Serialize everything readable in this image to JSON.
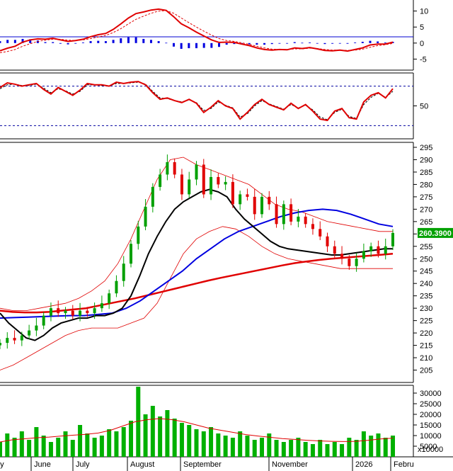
{
  "colors": {
    "up": "#00a000",
    "down": "#e00000",
    "ma_black": "#000000",
    "ma_blue": "#0000e0",
    "ma_red": "#e00000",
    "volume_bar": "#00b000",
    "price_tag_bg": "#00a000",
    "grid": "#000000"
  },
  "chart_data": [
    {
      "panel": "macd",
      "type": "line",
      "ylim": [
        -8,
        13
      ],
      "yticks": [
        "10",
        "5",
        "0",
        "-5"
      ],
      "series": [
        {
          "style": "solid-red",
          "values": [
            -2.4,
            -1.6,
            -1.0,
            0.3,
            1.0,
            1.3,
            1.2,
            1.5,
            1.0,
            0.5,
            0.8,
            1.2,
            2.0,
            2.6,
            3.0,
            4.3,
            6.0,
            7.8,
            9.2,
            9.7,
            10.3,
            10.6,
            10.2,
            8.2,
            6.0,
            4.8,
            3.4,
            2.2,
            1.0,
            0.2,
            0.3,
            0.2,
            -0.3,
            -0.8,
            -1.5,
            -2.0,
            -2.2,
            -2.0,
            -2.1,
            -1.5,
            -1.7,
            -1.4,
            -1.8,
            -2.3,
            -2.4,
            -2.2,
            -2.5,
            -2.0,
            -1.5,
            -0.6,
            -0.3,
            -0.3,
            0.3
          ]
        },
        {
          "style": "dashed-red",
          "values": [
            -3.0,
            -2.6,
            -2.0,
            -1.0,
            -0.2,
            0.5,
            0.9,
            1.2,
            1.2,
            0.9,
            0.8,
            1.0,
            1.4,
            1.9,
            2.4,
            3.3,
            4.5,
            6.0,
            7.4,
            8.4,
            9.3,
            10.0,
            10.1,
            9.3,
            7.8,
            6.4,
            5.0,
            3.7,
            2.5,
            1.4,
            0.8,
            0.5,
            0.1,
            -0.4,
            -1.0,
            -1.5,
            -1.9,
            -2.0,
            -2.0,
            -1.8,
            -1.8,
            -1.6,
            -1.7,
            -2.0,
            -2.2,
            -2.2,
            -2.3,
            -2.2,
            -1.9,
            -1.3,
            -0.8,
            -0.5,
            -0.1
          ]
        },
        {
          "style": "histogram",
          "values": [
            0.6,
            1.0,
            1.0,
            1.3,
            1.2,
            0.8,
            0.3,
            0.3,
            -0.2,
            -0.4,
            0.0,
            0.2,
            0.6,
            0.7,
            0.6,
            1.0,
            1.5,
            1.8,
            1.8,
            1.3,
            1.0,
            0.6,
            0.1,
            -1.1,
            -1.8,
            -1.6,
            -1.6,
            -1.5,
            -1.5,
            -1.2,
            -0.5,
            -0.3,
            -0.4,
            -0.4,
            -0.5,
            -0.5,
            -0.3,
            0.0,
            -0.1,
            0.3,
            0.1,
            0.2,
            -0.1,
            -0.3,
            -0.2,
            0.0,
            -0.2,
            0.2,
            0.4,
            0.7,
            0.5,
            0.2,
            0.4
          ]
        }
      ]
    },
    {
      "panel": "rsi",
      "type": "line",
      "ylim": [
        0,
        100
      ],
      "yticks": [
        "50"
      ],
      "reference_lines": [
        80,
        20
      ],
      "series": [
        {
          "style": "solid-red",
          "values": [
            78,
            85,
            83,
            80,
            82,
            84,
            75,
            68,
            78,
            72,
            66,
            74,
            84,
            82,
            82,
            80,
            86,
            84,
            86,
            87,
            82,
            70,
            60,
            62,
            58,
            55,
            60,
            54,
            40,
            48,
            58,
            50,
            46,
            30,
            40,
            52,
            60,
            52,
            48,
            44,
            54,
            46,
            52,
            42,
            30,
            28,
            42,
            46,
            32,
            30,
            56,
            66,
            70,
            62,
            76
          ]
        },
        {
          "style": "dashed-black",
          "values": [
            76,
            82,
            83,
            81,
            81,
            83,
            77,
            70,
            76,
            73,
            68,
            72,
            82,
            82,
            81,
            80,
            84,
            84,
            85,
            86,
            83,
            72,
            62,
            61,
            58,
            56,
            59,
            55,
            43,
            46,
            56,
            51,
            47,
            33,
            38,
            50,
            58,
            53,
            49,
            45,
            52,
            47,
            51,
            44,
            33,
            29,
            40,
            45,
            34,
            31,
            52,
            63,
            69,
            63,
            72
          ]
        }
      ]
    },
    {
      "panel": "price",
      "type": "line",
      "ylim": [
        200,
        297
      ],
      "yticks": [
        "295",
        "290",
        "285",
        "280",
        "275",
        "270",
        "265",
        "260",
        "255",
        "250",
        "245",
        "240",
        "235",
        "230",
        "225",
        "220",
        "215",
        "210",
        "205"
      ],
      "last_price": "260.3900",
      "series": [
        {
          "style": "close-red",
          "values": [
            216,
            218,
            217,
            219,
            221,
            223,
            227,
            230,
            228,
            229,
            227,
            229,
            228,
            230,
            232,
            236,
            241,
            248,
            256,
            263,
            271,
            279,
            284,
            289,
            284,
            276,
            282,
            288,
            276,
            283,
            280,
            281,
            272,
            276,
            275,
            268,
            275,
            272,
            264,
            272,
            265,
            267,
            264,
            262,
            259,
            255,
            252,
            250,
            247,
            250,
            253,
            255,
            252,
            255,
            260.4
          ]
        },
        {
          "style": "ma-black",
          "values": [
            228,
            224,
            221,
            218,
            217,
            219,
            222,
            224,
            225,
            226,
            226,
            227,
            227,
            228,
            230,
            235,
            243,
            252,
            259,
            265,
            270,
            273,
            275,
            277,
            278,
            277,
            275,
            270,
            266,
            263,
            260,
            257,
            255,
            254,
            253.5,
            253,
            252.5,
            252,
            251.5,
            251.5,
            252,
            252.5,
            253,
            253.5,
            254,
            254
          ]
        },
        {
          "style": "ma-blue",
          "values": [
            226,
            226.2,
            226.4,
            226.6,
            226.8,
            227,
            227,
            227.5,
            228,
            230,
            233,
            237,
            241,
            245,
            250,
            254,
            258,
            261,
            263,
            265,
            267,
            268.5,
            269.5,
            270,
            269.5,
            268,
            266,
            264,
            263
          ]
        },
        {
          "style": "ma-red",
          "values": [
            229,
            228.5,
            228.3,
            228.3,
            228.5,
            229,
            229.5,
            230,
            231,
            232,
            233,
            234,
            235.2,
            236.4,
            237.6,
            238.8,
            240,
            241.2,
            242.3,
            243.3,
            244.3,
            245.3,
            246.3,
            247.3,
            248.2,
            248.9,
            249.5,
            250,
            250.4,
            250.8,
            251.2,
            251.6,
            252
          ]
        },
        {
          "style": "band-upper",
          "values": [
            230,
            229,
            229,
            230,
            231,
            232,
            234,
            237,
            241,
            248,
            258,
            270,
            282,
            290,
            291,
            288,
            286,
            284,
            282,
            280,
            276,
            272,
            270,
            269,
            267,
            265,
            264,
            263,
            262,
            261,
            261
          ]
        },
        {
          "style": "band-lower",
          "values": [
            205,
            207,
            210,
            213,
            216,
            219,
            221,
            222,
            222,
            222,
            224,
            226,
            232,
            242,
            252,
            258,
            261,
            263,
            262,
            259,
            255,
            252,
            250,
            249,
            248,
            247,
            246,
            246,
            246,
            246,
            246
          ]
        }
      ]
    },
    {
      "panel": "volume",
      "type": "bar",
      "ylim": [
        0,
        33000
      ],
      "yticks": [
        "30000",
        "25000",
        "20000",
        "15000",
        "10000",
        "5000"
      ],
      "unit_label": "x10000",
      "values": [
        7000,
        11000,
        9000,
        12000,
        8000,
        14000,
        10000,
        7000,
        9000,
        12000,
        8000,
        15000,
        11000,
        9000,
        10000,
        13000,
        12000,
        14000,
        17000,
        33000,
        20000,
        24000,
        19000,
        22000,
        18000,
        16000,
        15000,
        13000,
        12000,
        14000,
        11000,
        10000,
        9000,
        12000,
        10000,
        8000,
        9000,
        11000,
        8000,
        7000,
        8000,
        9000,
        7000,
        6000,
        8000,
        6000,
        7000,
        6000,
        9000,
        8000,
        12000,
        10000,
        11000,
        9000,
        10000
      ],
      "ma": [
        7000,
        8000,
        8500,
        9000,
        9300,
        9800,
        10200,
        10600,
        11200,
        12500,
        14500,
        16500,
        17500,
        18000,
        17500,
        16500,
        15000,
        13500,
        12500,
        11500,
        10500,
        9800,
        9200,
        8600,
        8200,
        7800,
        7500,
        7300,
        7200,
        7300,
        7800,
        8400,
        8800
      ]
    }
  ],
  "x_axis": {
    "months": [
      "ay",
      "June",
      "July",
      "August",
      "September",
      "November",
      "2026",
      "Febru"
    ]
  }
}
